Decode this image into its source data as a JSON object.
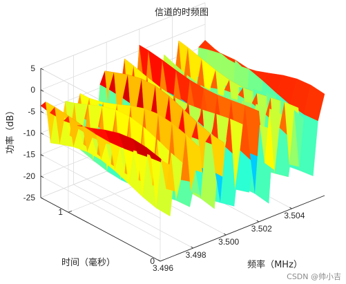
{
  "chart_data": {
    "type": "surface",
    "title": "信道的时频图",
    "xlabel": "频率（MHz）",
    "ylabel": "时间（毫秒）",
    "zlabel": "功率（dB）",
    "x_ticks": [
      "3.496",
      "3.498",
      "3.500",
      "3.502",
      "3.504"
    ],
    "y_ticks": [
      "0",
      "1"
    ],
    "z_ticks": [
      "5",
      "0",
      "-5",
      "-10",
      "-15",
      "-20",
      "-25"
    ],
    "xlim": [
      3.496,
      3.506
    ],
    "ylim": [
      0,
      1.3
    ],
    "zlim": [
      -25,
      5
    ],
    "colormap": "jet",
    "grid": true,
    "power_profile_db": [
      {
        "f": 3.496,
        "p": -2
      },
      {
        "f": 3.4963,
        "p": -4
      },
      {
        "f": 3.4966,
        "p": -13
      },
      {
        "f": 3.4969,
        "p": -6
      },
      {
        "f": 3.4972,
        "p": -12
      },
      {
        "f": 3.4975,
        "p": -3
      },
      {
        "f": 3.4978,
        "p": -16
      },
      {
        "f": 3.4981,
        "p": -10
      },
      {
        "f": 3.4984,
        "p": -2
      },
      {
        "f": 3.4987,
        "p": -15
      },
      {
        "f": 3.499,
        "p": -8
      },
      {
        "f": 3.4993,
        "p": -19
      },
      {
        "f": 3.4996,
        "p": -5
      },
      {
        "f": 3.4999,
        "p": -1
      },
      {
        "f": 3.5002,
        "p": -14
      },
      {
        "f": 3.5005,
        "p": -20
      },
      {
        "f": 3.5008,
        "p": -7
      },
      {
        "f": 3.5011,
        "p": -2
      },
      {
        "f": 3.5014,
        "p": -17
      },
      {
        "f": 3.5017,
        "p": -11
      },
      {
        "f": 3.502,
        "p": 0
      },
      {
        "f": 3.5023,
        "p": -9
      },
      {
        "f": 3.5026,
        "p": -23
      },
      {
        "f": 3.5029,
        "p": -6
      },
      {
        "f": 3.5032,
        "p": -13
      },
      {
        "f": 3.5035,
        "p": -4
      },
      {
        "f": 3.5038,
        "p": -18
      },
      {
        "f": 3.5041,
        "p": -8
      },
      {
        "f": 3.5044,
        "p": -3
      },
      {
        "f": 3.5047,
        "p": -16
      },
      {
        "f": 3.505,
        "p": -7
      },
      {
        "f": 3.5053,
        "p": -20
      },
      {
        "f": 3.5056,
        "p": -5
      },
      {
        "f": 3.506,
        "p": -3
      }
    ],
    "time_samples_ms": [
      0,
      0.15,
      0.3,
      0.45,
      0.6,
      0.75,
      0.9,
      1.05,
      1.2,
      1.3
    ]
  },
  "watermark": "CSDN @帅小吉"
}
